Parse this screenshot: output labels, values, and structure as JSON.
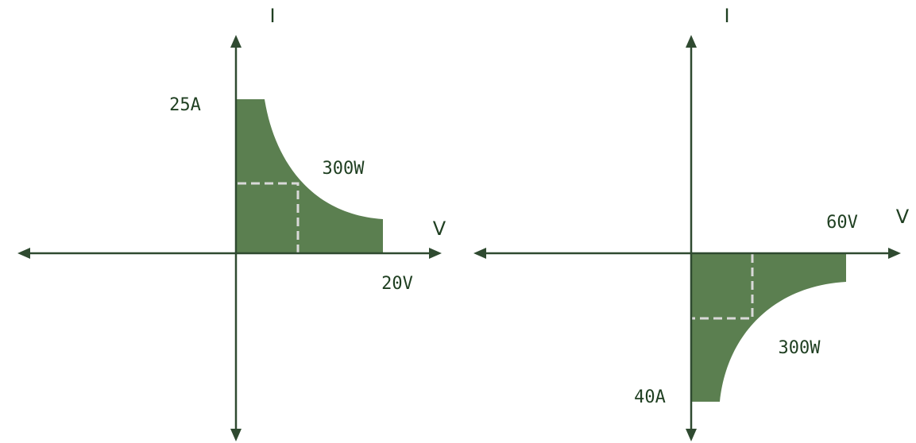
{
  "colors": {
    "axis": "#2f4a30",
    "region_fill": "#5b7f50",
    "dashed_line": "#d9d9d9",
    "text": "#1f3f21",
    "background": "#ffffff"
  },
  "left_quadrant": {
    "current_axis_label": "I",
    "voltage_axis_label": "V",
    "max_current_label": "25A",
    "power_label": "300W",
    "max_voltage_label": "20V"
  },
  "right_quadrant": {
    "current_axis_label": "I",
    "voltage_axis_label": "V",
    "max_voltage_label": "60V",
    "power_label": "300W",
    "max_current_label": "40A"
  }
}
